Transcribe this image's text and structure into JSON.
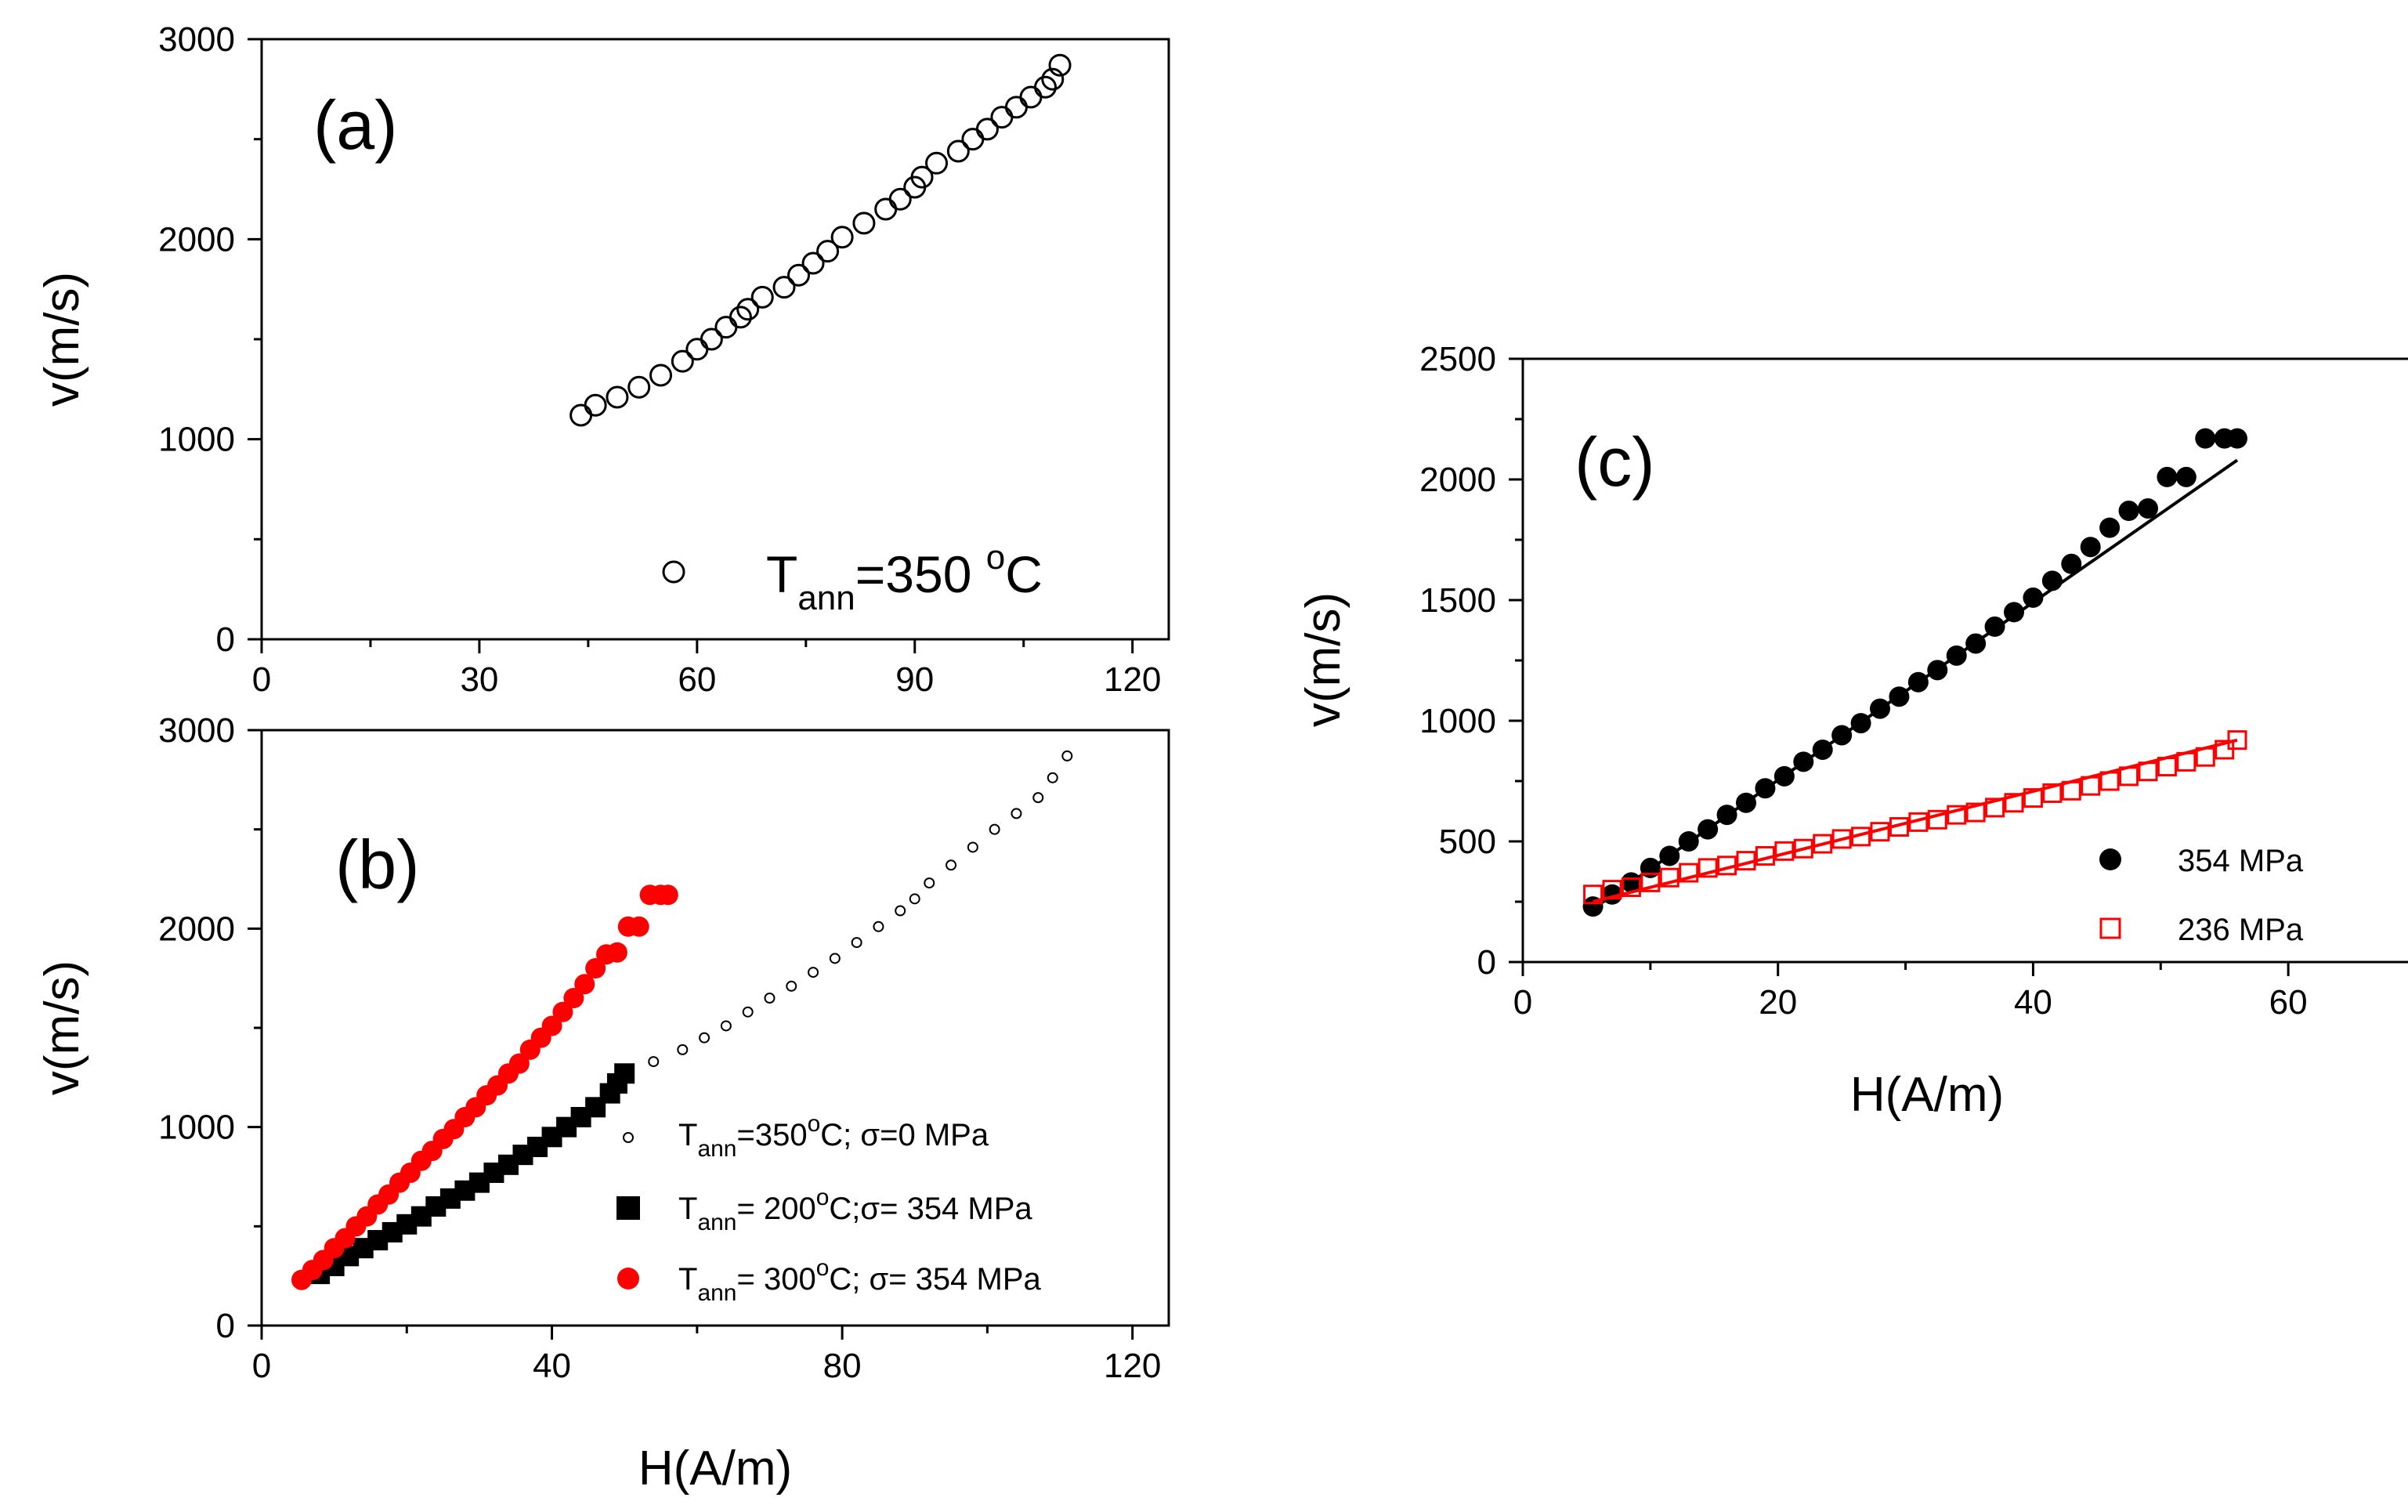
{
  "chart_data": [
    {
      "id": "a",
      "type": "scatter",
      "panel_label": "(a)",
      "xlabel": "",
      "ylabel": "v(m/s)",
      "xlim": [
        0,
        125
      ],
      "ylim": [
        0,
        3000
      ],
      "xticks": [
        "0",
        "30",
        "60",
        "90",
        "120"
      ],
      "yticks": [
        "0",
        "1000",
        "2000",
        "3000"
      ],
      "legend": {
        "T": "T",
        "sub": "ann",
        "rest1": "=350 ",
        "sup": "o",
        "rest2": "C",
        "position": "bottom-right"
      },
      "series": [
        {
          "name": "T_ann=350 °C",
          "marker": "open-circle",
          "color": "#000000",
          "x": [
            44,
            46,
            49,
            52,
            55,
            58,
            60,
            62,
            64,
            66,
            67,
            69,
            72,
            74,
            76,
            78,
            80,
            83,
            86,
            88,
            90,
            91,
            93,
            96,
            98,
            100,
            102,
            104,
            106,
            108,
            109,
            110
          ],
          "y": [
            1120,
            1170,
            1210,
            1260,
            1320,
            1390,
            1450,
            1500,
            1560,
            1610,
            1650,
            1710,
            1760,
            1820,
            1880,
            1940,
            2010,
            2080,
            2150,
            2200,
            2260,
            2310,
            2380,
            2440,
            2500,
            2550,
            2610,
            2660,
            2710,
            2760,
            2800,
            2870
          ]
        }
      ]
    },
    {
      "id": "b",
      "type": "scatter",
      "panel_label": "(b)",
      "xlabel": "H(A/m)",
      "ylabel": "v(m/s)",
      "xlim": [
        0,
        125
      ],
      "ylim": [
        0,
        3000
      ],
      "xticks": [
        "0",
        "40",
        "80",
        "120"
      ],
      "yticks": [
        "0",
        "1000",
        "2000",
        "3000"
      ],
      "legend": {
        "position": "right",
        "entries": [
          {
            "T": "T",
            "sub": "ann",
            "mid": "=350",
            "sup": "o",
            "rest": "C; σ=0 MPa"
          },
          {
            "T": "T",
            "sub": "ann",
            "mid": "= 200",
            "sup": "o",
            "rest": "C;σ= 354 MPa"
          },
          {
            "T": "T",
            "sub": "ann",
            "mid": "= 300",
            "sup": "o",
            "rest": "C; σ= 354 MPa"
          }
        ]
      },
      "series": [
        {
          "name": "T_ann=350°C; σ=0 MPa",
          "marker": "small-open-circle",
          "color": "#000000",
          "x": [
            50,
            54,
            58,
            61,
            64,
            67,
            70,
            73,
            76,
            79,
            82,
            85,
            88,
            90,
            92,
            95,
            98,
            101,
            104,
            107,
            109,
            111
          ],
          "y": [
            1280,
            1330,
            1390,
            1450,
            1510,
            1580,
            1650,
            1710,
            1780,
            1850,
            1930,
            2010,
            2090,
            2150,
            2230,
            2320,
            2410,
            2500,
            2580,
            2660,
            2760,
            2870
          ]
        },
        {
          "name": "T_ann= 200°C;σ= 354 MPa",
          "marker": "filled-square",
          "color": "#000000",
          "x": [
            8,
            10,
            12,
            14,
            16,
            18,
            20,
            22,
            24,
            26,
            28,
            30,
            32,
            34,
            36,
            38,
            40,
            42,
            44,
            46,
            48,
            49,
            50
          ],
          "y": [
            260,
            300,
            350,
            390,
            430,
            470,
            510,
            550,
            600,
            640,
            680,
            720,
            770,
            810,
            860,
            900,
            950,
            1000,
            1050,
            1100,
            1170,
            1220,
            1270
          ]
        },
        {
          "name": "T_ann= 300°C; σ= 354 MPa",
          "marker": "filled-circle",
          "color": "#ff0000",
          "x": [
            5.5,
            7,
            8.5,
            10,
            11.5,
            13,
            14.5,
            16,
            17.5,
            19,
            20.5,
            22,
            23.5,
            25,
            26.5,
            28,
            29.5,
            31,
            32.5,
            34,
            35.5,
            37,
            38.5,
            40,
            41.5,
            43,
            44.5,
            46,
            47.5,
            49,
            50.5,
            52,
            53.5,
            55,
            56
          ],
          "y": [
            230,
            280,
            330,
            390,
            440,
            500,
            550,
            610,
            660,
            720,
            770,
            830,
            880,
            940,
            990,
            1050,
            1100,
            1160,
            1210,
            1270,
            1320,
            1390,
            1450,
            1510,
            1580,
            1650,
            1720,
            1800,
            1870,
            1880,
            2010,
            2010,
            2170,
            2170,
            2170
          ]
        }
      ]
    },
    {
      "id": "c",
      "type": "scatter",
      "panel_label": "(c)",
      "xlabel": "H(A/m)",
      "ylabel": "v(m/s)",
      "xlim": [
        0,
        70
      ],
      "ylim": [
        0,
        2500
      ],
      "xticks": [
        "0",
        "20",
        "40",
        "60"
      ],
      "yticks": [
        "0",
        "500",
        "1000",
        "1500",
        "2000",
        "2500"
      ],
      "legend": {
        "position": "bottom-right",
        "entries": [
          "354 MPa",
          "236 MPa"
        ]
      },
      "series": [
        {
          "name": "354 MPa",
          "marker": "filled-circle",
          "color": "#000000",
          "x": [
            5.5,
            7,
            8.5,
            10,
            11.5,
            13,
            14.5,
            16,
            17.5,
            19,
            20.5,
            22,
            23.5,
            25,
            26.5,
            28,
            29.5,
            31,
            32.5,
            34,
            35.5,
            37,
            38.5,
            40,
            41.5,
            43,
            44.5,
            46,
            47.5,
            49,
            50.5,
            52,
            53.5,
            55,
            56
          ],
          "y": [
            230,
            280,
            330,
            390,
            440,
            500,
            550,
            610,
            660,
            720,
            770,
            830,
            880,
            940,
            990,
            1050,
            1100,
            1160,
            1210,
            1270,
            1320,
            1390,
            1450,
            1510,
            1580,
            1650,
            1720,
            1800,
            1870,
            1880,
            2010,
            2010,
            2170,
            2170,
            2170
          ],
          "fit": [
            [
              5.5,
              220
            ],
            [
              56,
              2080
            ]
          ]
        },
        {
          "name": "236 MPa",
          "marker": "open-square",
          "color": "#ff0000",
          "x": [
            5.5,
            7,
            8.5,
            10,
            11.5,
            13,
            14.5,
            16,
            17.5,
            19,
            20.5,
            22,
            23.5,
            25,
            26.5,
            28,
            29.5,
            31,
            32.5,
            34,
            35.5,
            37,
            38.5,
            40,
            41.5,
            43,
            44.5,
            46,
            47.5,
            49,
            50.5,
            52,
            53.5,
            55,
            56
          ],
          "y": [
            280,
            300,
            310,
            330,
            350,
            370,
            390,
            400,
            420,
            440,
            460,
            470,
            490,
            510,
            520,
            540,
            560,
            580,
            590,
            610,
            620,
            640,
            660,
            680,
            700,
            710,
            730,
            750,
            770,
            790,
            810,
            830,
            850,
            880,
            920
          ],
          "fit": [
            [
              5.5,
              250
            ],
            [
              56,
              920
            ]
          ]
        }
      ]
    }
  ]
}
